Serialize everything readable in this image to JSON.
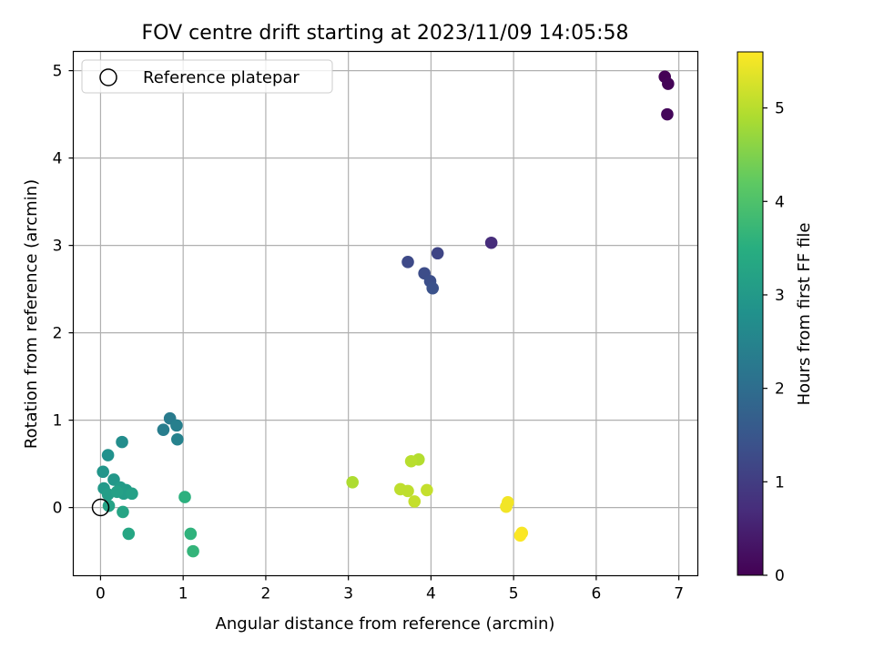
{
  "chart_data": {
    "type": "scatter",
    "title": "FOV centre drift starting at 2023/11/09 14:05:58",
    "xlabel": "Angular distance from reference (arcmin)",
    "ylabel": "Rotation from reference (arcmin)",
    "xlim": [
      -0.33,
      7.23
    ],
    "ylim": [
      -0.78,
      5.22
    ],
    "xticks": [
      0,
      1,
      2,
      3,
      4,
      5,
      6,
      7
    ],
    "xtick_labels": [
      "0",
      "1",
      "2",
      "3",
      "4",
      "5",
      "6",
      "7"
    ],
    "yticks": [
      0,
      1,
      2,
      3,
      4,
      5
    ],
    "ytick_labels": [
      "0",
      "1",
      "2",
      "3",
      "4",
      "5"
    ],
    "grid": true,
    "legend": {
      "placement": "top-left",
      "entries": [
        {
          "label": "Reference platepar",
          "marker": "open-circle",
          "color": "#000000"
        }
      ]
    },
    "reference_point": {
      "x": 0,
      "y": 0
    },
    "colorbar": {
      "label": "Hours from first FF file",
      "colormap": "viridis",
      "range": [
        0,
        5.6
      ],
      "ticks": [
        0,
        1,
        2,
        3,
        4,
        5
      ],
      "tick_labels": [
        "0",
        "1",
        "2",
        "3",
        "4",
        "5"
      ]
    },
    "points": [
      {
        "x": 6.83,
        "y": 4.93,
        "t": 0.02
      },
      {
        "x": 6.87,
        "y": 4.85,
        "t": 0.05
      },
      {
        "x": 6.86,
        "y": 4.5,
        "t": 0.1
      },
      {
        "x": 4.73,
        "y": 3.03,
        "t": 0.7
      },
      {
        "x": 4.08,
        "y": 2.91,
        "t": 1.15
      },
      {
        "x": 3.72,
        "y": 2.81,
        "t": 1.25
      },
      {
        "x": 3.92,
        "y": 2.68,
        "t": 1.3
      },
      {
        "x": 3.99,
        "y": 2.59,
        "t": 1.35
      },
      {
        "x": 4.02,
        "y": 2.51,
        "t": 1.4
      },
      {
        "x": 0.84,
        "y": 1.02,
        "t": 2.3
      },
      {
        "x": 0.76,
        "y": 0.89,
        "t": 2.35
      },
      {
        "x": 0.92,
        "y": 0.94,
        "t": 2.4
      },
      {
        "x": 0.93,
        "y": 0.78,
        "t": 2.45
      },
      {
        "x": 0.26,
        "y": 0.75,
        "t": 2.7
      },
      {
        "x": 0.09,
        "y": 0.6,
        "t": 2.8
      },
      {
        "x": 0.03,
        "y": 0.41,
        "t": 2.9
      },
      {
        "x": 0.16,
        "y": 0.32,
        "t": 2.95
      },
      {
        "x": 0.04,
        "y": 0.22,
        "t": 3.0
      },
      {
        "x": 0.24,
        "y": 0.23,
        "t": 3.05
      },
      {
        "x": 0.31,
        "y": 0.2,
        "t": 3.05
      },
      {
        "x": 0.09,
        "y": 0.15,
        "t": 3.1
      },
      {
        "x": 0.28,
        "y": 0.16,
        "t": 3.1
      },
      {
        "x": 0.38,
        "y": 0.16,
        "t": 3.15
      },
      {
        "x": 0.2,
        "y": 0.18,
        "t": 3.15
      },
      {
        "x": 0.1,
        "y": 0.02,
        "t": 3.2
      },
      {
        "x": 0.27,
        "y": -0.05,
        "t": 3.25
      },
      {
        "x": 0.34,
        "y": -0.3,
        "t": 3.3
      },
      {
        "x": 1.02,
        "y": 0.12,
        "t": 3.55
      },
      {
        "x": 1.09,
        "y": -0.3,
        "t": 3.6
      },
      {
        "x": 1.12,
        "y": -0.5,
        "t": 3.65
      },
      {
        "x": 3.05,
        "y": 0.29,
        "t": 4.9
      },
      {
        "x": 3.85,
        "y": 0.55,
        "t": 4.95
      },
      {
        "x": 3.76,
        "y": 0.53,
        "t": 5.0
      },
      {
        "x": 3.63,
        "y": 0.21,
        "t": 5.05
      },
      {
        "x": 3.72,
        "y": 0.19,
        "t": 5.05
      },
      {
        "x": 3.95,
        "y": 0.2,
        "t": 5.1
      },
      {
        "x": 3.8,
        "y": 0.07,
        "t": 5.1
      },
      {
        "x": 4.93,
        "y": 0.06,
        "t": 5.5
      },
      {
        "x": 4.91,
        "y": 0.01,
        "t": 5.5
      },
      {
        "x": 5.1,
        "y": -0.29,
        "t": 5.55
      },
      {
        "x": 5.08,
        "y": -0.32,
        "t": 5.58
      }
    ]
  }
}
